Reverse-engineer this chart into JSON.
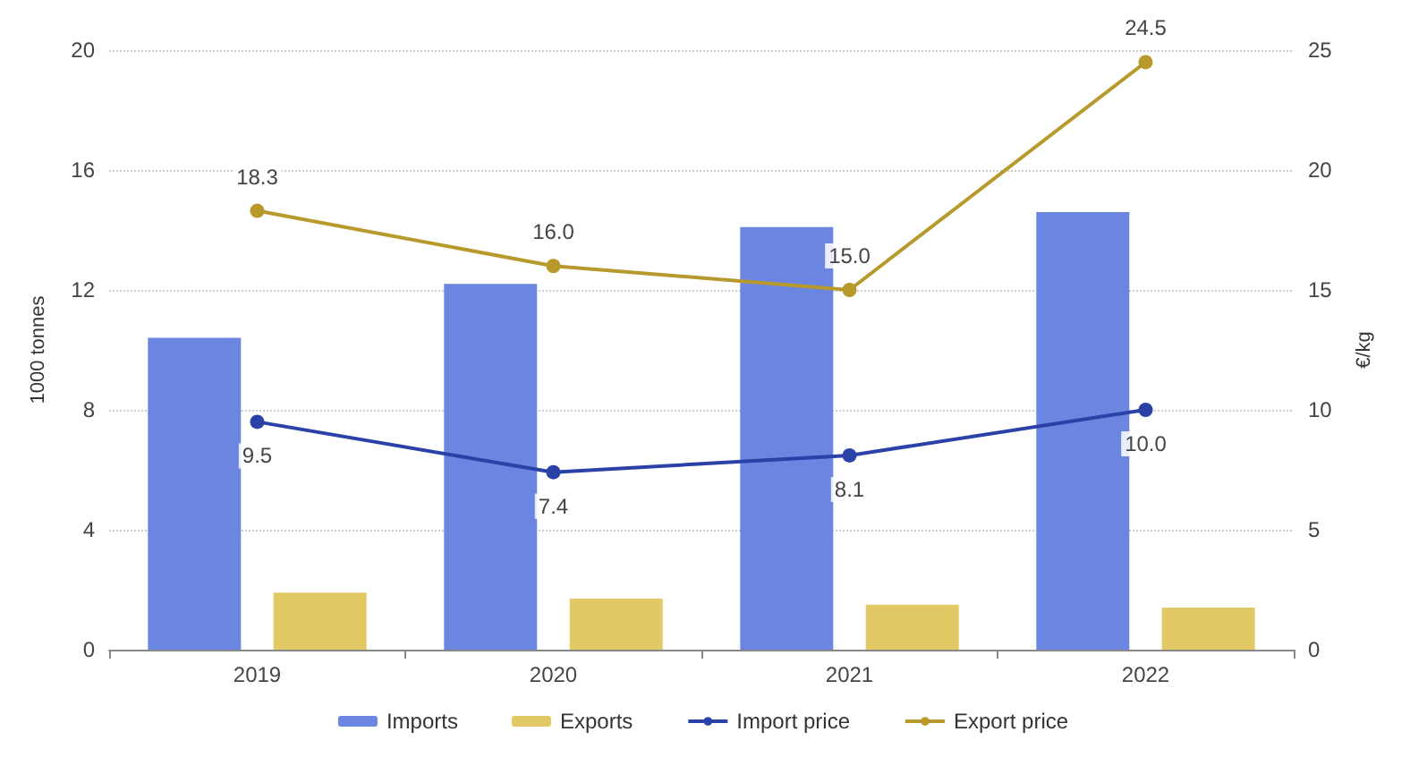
{
  "chart_data": {
    "type": "bar",
    "categories": [
      "2019",
      "2020",
      "2021",
      "2022"
    ],
    "ylabel": "1000 tonnes",
    "y2label": "€/kg",
    "ylim": [
      0,
      20
    ],
    "yticks": [
      0,
      4,
      8,
      12,
      16,
      20
    ],
    "y2lim": [
      0,
      25
    ],
    "y2ticks": [
      0,
      5,
      10,
      15,
      20,
      25
    ],
    "grid": "y",
    "legend": "bottom",
    "marker": "circle",
    "series": [
      {
        "name": "Imports",
        "color": "#6b86e0",
        "values": [
          10.4,
          12.2,
          14.1,
          14.6
        ]
      },
      {
        "name": "Exports",
        "color": "#e2c965",
        "values": [
          1.9,
          1.7,
          1.5,
          1.4
        ]
      },
      {
        "name": "Import price",
        "type": "line",
        "axis": "y2",
        "color": "#2a41a8",
        "values": [
          9.5,
          7.4,
          8.1,
          10.0
        ],
        "value_labels": [
          "9.5",
          "7.4",
          "8.1",
          "10.0"
        ]
      },
      {
        "name": "Export price",
        "type": "line",
        "axis": "y2",
        "color": "#b79a2b",
        "values": [
          18.3,
          16.0,
          15.0,
          24.5
        ],
        "value_labels": [
          "18.3",
          "16.0",
          "15.0",
          "24.5"
        ]
      }
    ]
  }
}
